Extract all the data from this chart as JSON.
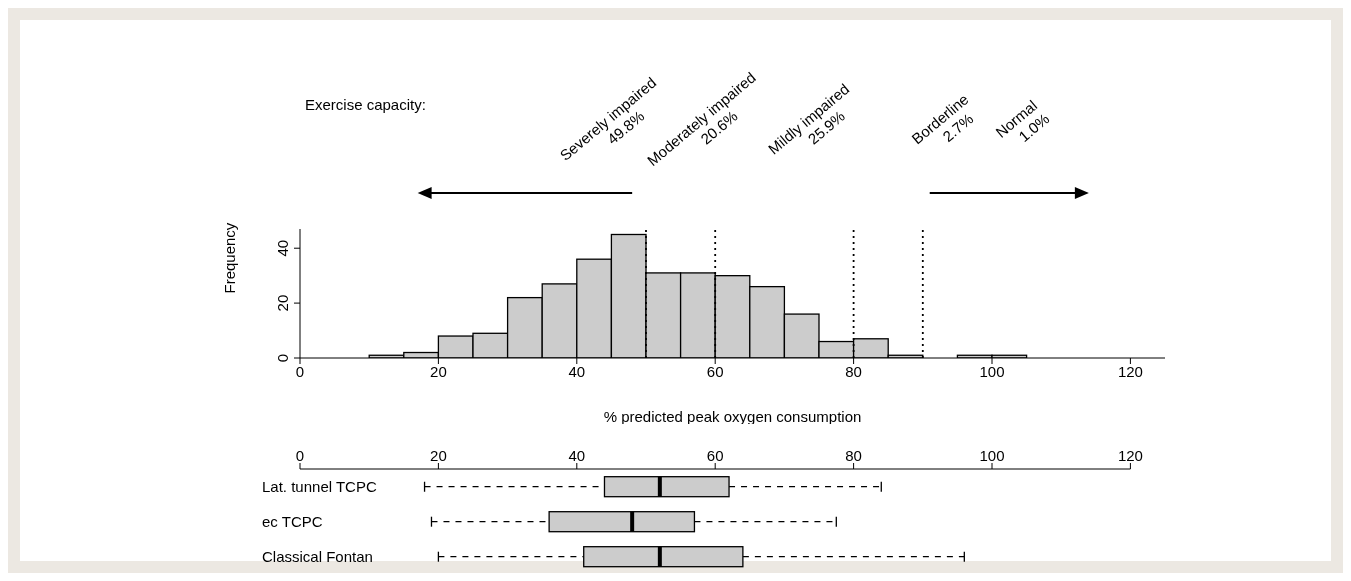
{
  "chart_data": [
    {
      "type": "histogram",
      "xlabel": "% predicted peak oxygen consumption",
      "ylabel": "Frequency",
      "bins": [
        10,
        15,
        20,
        25,
        30,
        35,
        40,
        45,
        50,
        55,
        60,
        65,
        70,
        75,
        80,
        85,
        90,
        95,
        100,
        105
      ],
      "values": [
        1,
        2,
        8,
        9,
        22,
        27,
        36,
        45,
        31,
        31,
        30,
        26,
        16,
        6,
        7,
        1,
        0,
        1,
        1
      ],
      "color": "#cccccc",
      "xlim": [
        0,
        125
      ],
      "xticks": [
        0,
        20,
        40,
        60,
        80,
        100,
        120
      ],
      "ylim": [
        0,
        47
      ],
      "yticks": [
        0,
        20,
        40
      ],
      "ref_lines": [
        {
          "axis": "x",
          "value": 50,
          "line_style": "dotted"
        },
        {
          "axis": "x",
          "value": 60,
          "line_style": "dotted"
        },
        {
          "axis": "x",
          "value": 80,
          "line_style": "dotted"
        },
        {
          "axis": "x",
          "value": 90,
          "line_style": "dotted"
        }
      ],
      "annotations": [
        "Exercise capacity:",
        "Severely impaired\n49.8%",
        "Moderately impaired\n20.6%",
        "Mildly impaired\n25.9%",
        "Borderline\n2.7%",
        "Normal\n1.0%"
      ]
    },
    {
      "type": "box",
      "orientation": "horizontal",
      "categories": [
        "Lat. tunnel TCPC",
        "ec TCPC",
        "Classical Fontan"
      ],
      "color": "#cccccc",
      "boxes": [
        {
          "low": 18,
          "q1": 44,
          "median": 52,
          "q3": 62,
          "high": 84
        },
        {
          "low": 19,
          "q1": 36,
          "median": 48,
          "q3": 57,
          "high": 77.5
        },
        {
          "low": 20,
          "q1": 41,
          "median": 52,
          "q3": 64,
          "high": 96
        }
      ],
      "xlim": [
        0,
        120
      ],
      "xticks": [
        0,
        20,
        40,
        60,
        80,
        100,
        120
      ]
    }
  ]
}
